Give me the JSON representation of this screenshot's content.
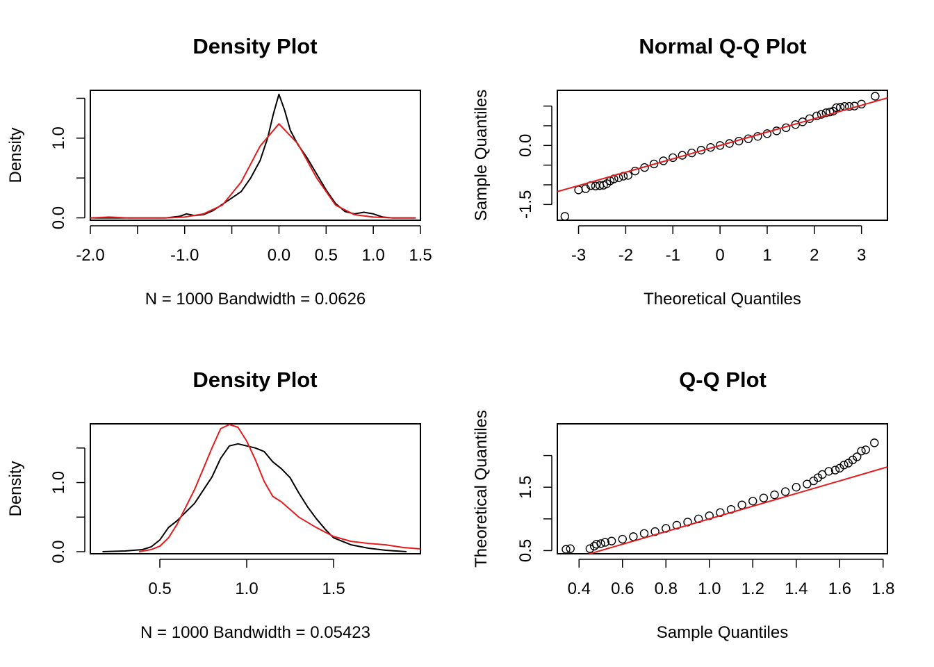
{
  "chart_data": [
    {
      "type": "line",
      "title": "Density Plot",
      "xlabel": "N = 1000   Bandwidth = 0.0626",
      "ylabel": "Density",
      "xlim": [
        -2.0,
        1.5
      ],
      "ylim": [
        -0.03,
        1.6
      ],
      "x_ticks": [
        -2.0,
        -1.5,
        -1.0,
        -0.5,
        0.0,
        0.5,
        1.0,
        1.5
      ],
      "x_tick_labels": [
        "-2.0",
        "",
        "-1.0",
        "",
        "0.0",
        "0.5",
        "1.0",
        "1.5"
      ],
      "y_ticks": [
        0.0,
        0.5,
        1.0,
        1.5
      ],
      "y_tick_labels": [
        "0.0",
        "",
        "1.0",
        ""
      ],
      "series": [
        {
          "color": "#000000",
          "x": [
            -2.0,
            -1.5,
            -1.2,
            -1.05,
            -0.98,
            -0.9,
            -0.8,
            -0.7,
            -0.6,
            -0.5,
            -0.4,
            -0.3,
            -0.2,
            -0.12,
            -0.06,
            0.0,
            0.06,
            0.12,
            0.2,
            0.3,
            0.4,
            0.5,
            0.6,
            0.7,
            0.8,
            0.9,
            1.0,
            1.1,
            1.2,
            1.45
          ],
          "y": [
            0.0,
            0.0,
            0.0,
            0.02,
            0.05,
            0.03,
            0.04,
            0.09,
            0.17,
            0.25,
            0.33,
            0.5,
            0.72,
            1.0,
            1.3,
            1.55,
            1.35,
            1.1,
            0.92,
            0.75,
            0.55,
            0.35,
            0.18,
            0.08,
            0.05,
            0.07,
            0.05,
            0.01,
            0.0,
            0.0
          ]
        },
        {
          "color": "#e41a1c",
          "x": [
            -2.0,
            -1.8,
            -1.6,
            -1.4,
            -1.2,
            -1.0,
            -0.8,
            -0.6,
            -0.4,
            -0.2,
            0.0,
            0.2,
            0.4,
            0.6,
            0.8,
            1.0,
            1.2,
            1.45
          ],
          "y": [
            0.0,
            0.01,
            0.0,
            0.0,
            0.0,
            0.01,
            0.05,
            0.16,
            0.45,
            0.9,
            1.18,
            0.93,
            0.5,
            0.16,
            0.04,
            0.01,
            0.0,
            0.0
          ]
        }
      ]
    },
    {
      "type": "scatter",
      "title": "Normal Q-Q Plot",
      "xlabel": "Theoretical Quantiles",
      "ylabel": "Sample Quantiles",
      "xlim": [
        -3.45,
        3.55
      ],
      "ylim": [
        -1.9,
        1.4
      ],
      "x_ticks": [
        -3,
        -2,
        -1,
        0,
        1,
        2,
        3
      ],
      "x_tick_labels": [
        "-3",
        "-2",
        "-1",
        "0",
        "1",
        "2",
        "3"
      ],
      "y_ticks": [
        -1.5,
        -1.0,
        -0.5,
        0.0,
        0.5,
        1.0
      ],
      "y_tick_labels": [
        "-1.5",
        "",
        "",
        "0.0",
        "",
        ""
      ],
      "reference_line": {
        "color": "#e41a1c",
        "intercept": 0.0,
        "slope": 0.34
      },
      "points": {
        "x": [
          -3.29,
          -3.0,
          -2.85,
          -2.74,
          -2.64,
          -2.55,
          -2.47,
          -2.4,
          -2.33,
          -2.25,
          -2.15,
          -2.05,
          -1.95,
          -1.8,
          -1.6,
          -1.4,
          -1.2,
          -1.0,
          -0.8,
          -0.6,
          -0.4,
          -0.2,
          0.0,
          0.2,
          0.4,
          0.6,
          0.8,
          1.0,
          1.2,
          1.4,
          1.6,
          1.75,
          1.9,
          2.05,
          2.15,
          2.25,
          2.33,
          2.4,
          2.47,
          2.55,
          2.64,
          2.74,
          2.85,
          3.0,
          3.29
        ],
        "y": [
          -1.8,
          -1.13,
          -1.1,
          -1.02,
          -1.03,
          -1.02,
          -1.01,
          -0.97,
          -0.9,
          -0.85,
          -0.82,
          -0.78,
          -0.76,
          -0.65,
          -0.56,
          -0.47,
          -0.39,
          -0.31,
          -0.25,
          -0.19,
          -0.12,
          -0.05,
          0.0,
          0.05,
          0.11,
          0.17,
          0.23,
          0.3,
          0.37,
          0.45,
          0.53,
          0.6,
          0.68,
          0.75,
          0.79,
          0.83,
          0.85,
          0.87,
          0.96,
          0.97,
          0.99,
          0.99,
          1.0,
          1.05,
          1.25
        ]
      }
    },
    {
      "type": "line",
      "title": "Density Plot",
      "xlabel": "N = 1000   Bandwidth = 0.05423",
      "ylabel": "Density",
      "xlim": [
        0.1,
        2.0
      ],
      "ylim": [
        -0.03,
        1.85
      ],
      "x_ticks": [
        0.5,
        1.0,
        1.5
      ],
      "x_tick_labels": [
        "0.5",
        "1.0",
        "1.5"
      ],
      "y_ticks": [
        0.0,
        0.5,
        1.0,
        1.5
      ],
      "y_tick_labels": [
        "0.0",
        "",
        "1.0",
        ""
      ],
      "series": [
        {
          "color": "#000000",
          "x": [
            0.17,
            0.3,
            0.4,
            0.45,
            0.5,
            0.55,
            0.6,
            0.7,
            0.8,
            0.85,
            0.9,
            0.95,
            1.0,
            1.05,
            1.1,
            1.15,
            1.2,
            1.25,
            1.3,
            1.35,
            1.4,
            1.45,
            1.5,
            1.6,
            1.7,
            1.8,
            1.92
          ],
          "y": [
            0.0,
            0.01,
            0.03,
            0.07,
            0.17,
            0.35,
            0.45,
            0.7,
            1.08,
            1.35,
            1.53,
            1.56,
            1.53,
            1.5,
            1.45,
            1.3,
            1.2,
            1.07,
            0.85,
            0.65,
            0.48,
            0.33,
            0.2,
            0.1,
            0.05,
            0.02,
            0.0
          ]
        },
        {
          "color": "#e41a1c",
          "x": [
            0.38,
            0.45,
            0.5,
            0.55,
            0.6,
            0.65,
            0.7,
            0.75,
            0.8,
            0.85,
            0.9,
            0.95,
            1.0,
            1.05,
            1.1,
            1.15,
            1.2,
            1.3,
            1.4,
            1.5,
            1.6,
            1.7,
            1.8,
            1.9,
            2.0
          ],
          "y": [
            0.0,
            0.03,
            0.08,
            0.2,
            0.4,
            0.65,
            0.9,
            1.2,
            1.5,
            1.78,
            1.84,
            1.8,
            1.6,
            1.33,
            1.02,
            0.8,
            0.72,
            0.5,
            0.35,
            0.22,
            0.15,
            0.12,
            0.1,
            0.06,
            0.04
          ]
        }
      ]
    },
    {
      "type": "scatter",
      "title": "Q-Q Plot",
      "xlabel": "Sample Quantiles",
      "ylabel": "Theoretical Quantiles",
      "xlim": [
        0.3,
        1.82
      ],
      "ylim": [
        0.45,
        2.5
      ],
      "x_ticks": [
        0.4,
        0.6,
        0.8,
        1.0,
        1.2,
        1.4,
        1.6,
        1.8
      ],
      "x_tick_labels": [
        "0.4",
        "0.6",
        "0.8",
        "1.0",
        "1.2",
        "1.4",
        "1.6",
        "1.8"
      ],
      "y_ticks": [
        0.5,
        1.0,
        1.5,
        2.0
      ],
      "y_tick_labels": [
        "0.5",
        "",
        "1.5",
        ""
      ],
      "reference_line": {
        "color": "#e41a1c",
        "intercept": 0.0,
        "slope": 1.0
      },
      "points": {
        "x": [
          0.34,
          0.36,
          0.45,
          0.47,
          0.48,
          0.5,
          0.52,
          0.55,
          0.6,
          0.65,
          0.7,
          0.75,
          0.8,
          0.85,
          0.9,
          0.95,
          1.0,
          1.05,
          1.1,
          1.15,
          1.2,
          1.25,
          1.3,
          1.35,
          1.4,
          1.45,
          1.48,
          1.5,
          1.52,
          1.55,
          1.58,
          1.6,
          1.62,
          1.64,
          1.66,
          1.68,
          1.7,
          1.72,
          1.76
        ],
        "y": [
          0.52,
          0.53,
          0.53,
          0.57,
          0.6,
          0.61,
          0.63,
          0.65,
          0.68,
          0.72,
          0.77,
          0.8,
          0.85,
          0.9,
          0.95,
          1.0,
          1.05,
          1.1,
          1.15,
          1.22,
          1.28,
          1.33,
          1.38,
          1.43,
          1.5,
          1.55,
          1.6,
          1.65,
          1.7,
          1.75,
          1.77,
          1.8,
          1.85,
          1.88,
          1.93,
          1.98,
          2.07,
          2.09,
          2.2
        ]
      }
    }
  ]
}
